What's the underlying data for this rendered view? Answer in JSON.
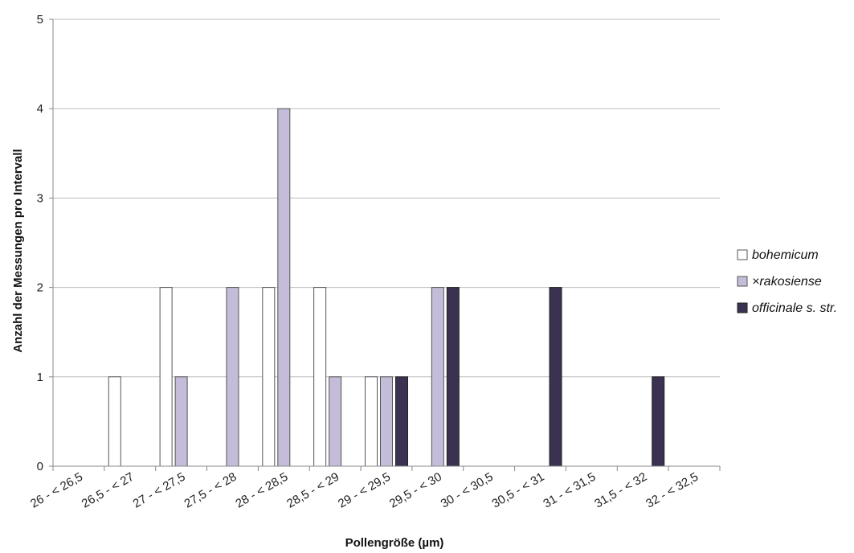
{
  "chart_data": {
    "type": "bar",
    "xlabel": "Pollengröße (µm)",
    "ylabel": "Anzahl der Messungen pro Intervall",
    "ylim": [
      0,
      5
    ],
    "yticks": [
      "0",
      "1",
      "2",
      "3",
      "4",
      "5"
    ],
    "grid": "horizontal",
    "legend_position": "right",
    "categories": [
      "26 - < 26,5",
      "26,5 - < 27",
      "27 - < 27,5",
      "27,5 - < 28",
      "28 - < 28,5",
      "28,5 - < 29",
      "29 - < 29,5",
      "29,5 - < 30",
      "30 - < 30,5",
      "30,5 - < 31",
      "31 - < 31,5",
      "31,5 - < 32",
      "32 - < 32,5"
    ],
    "series": [
      {
        "name": "bohemicum",
        "color": "#ffffff",
        "stroke": "#555555",
        "values": [
          0,
          1,
          2,
          0,
          2,
          2,
          1,
          0,
          0,
          0,
          0,
          0,
          0
        ]
      },
      {
        "name": "×rakosiense",
        "color": "#c4bcd8",
        "stroke": "#555555",
        "values": [
          0,
          0,
          1,
          2,
          4,
          1,
          1,
          2,
          0,
          0,
          0,
          0,
          0
        ]
      },
      {
        "name": "officinale s. str.",
        "color": "#3b3150",
        "stroke": "#222222",
        "values": [
          0,
          0,
          0,
          0,
          0,
          0,
          1,
          2,
          0,
          2,
          0,
          1,
          0
        ]
      }
    ]
  }
}
